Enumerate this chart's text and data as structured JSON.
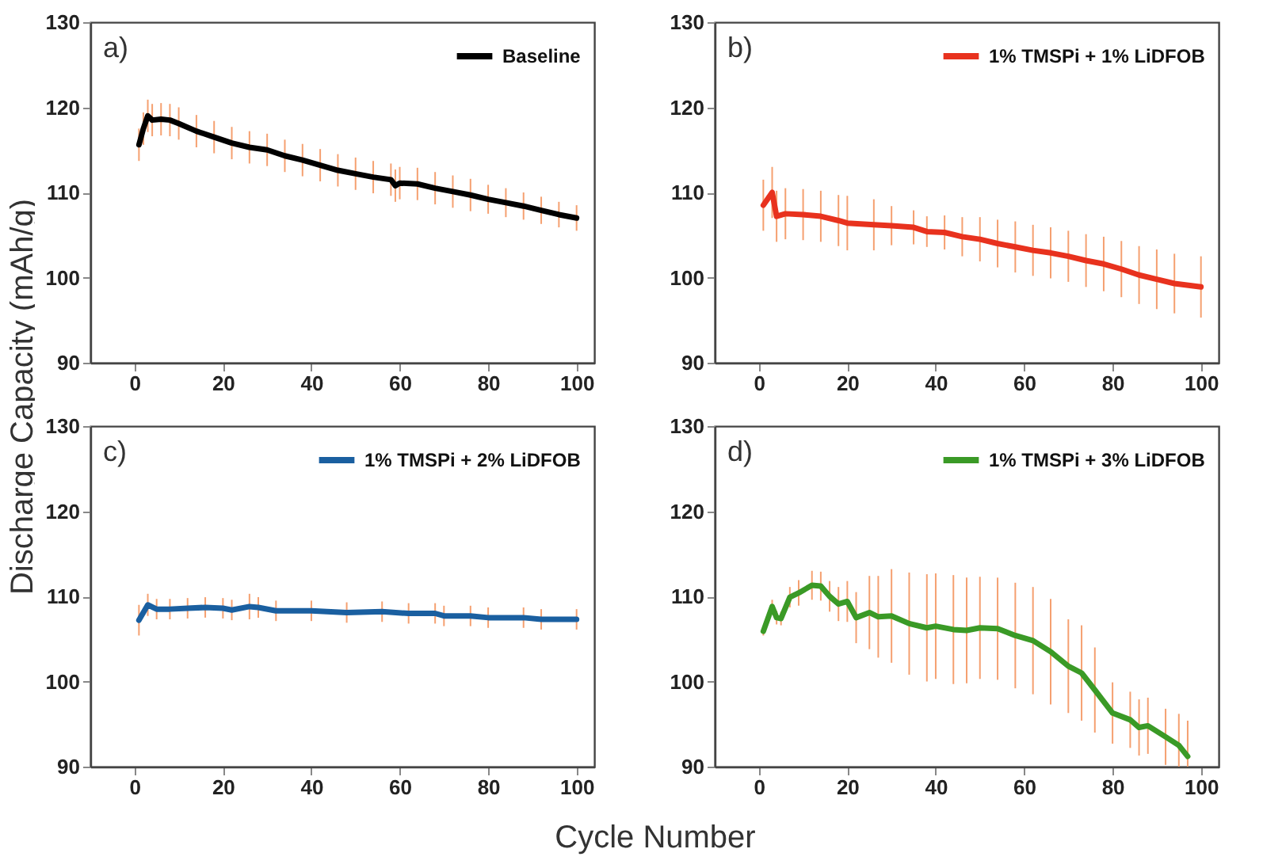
{
  "chart_data": [
    {
      "type": "line",
      "ylabel": "Discharge Capacity (mAh/g)",
      "annotations": [
        "a)"
      ],
      "xlim": [
        -10,
        104
      ],
      "ylim": [
        90,
        130
      ],
      "xticks": [
        0,
        20,
        40,
        60,
        80,
        100
      ],
      "yticks": [
        90,
        100,
        110,
        120,
        130
      ],
      "grid": false,
      "legend": "top right",
      "marker": "none",
      "line_style": "solid",
      "series": [
        {
          "name": "Baseline",
          "color": "#000000",
          "x": [
            1,
            2,
            3,
            4,
            6,
            8,
            10,
            14,
            18,
            22,
            26,
            30,
            34,
            38,
            42,
            46,
            50,
            54,
            58,
            59,
            60,
            64,
            68,
            72,
            76,
            80,
            84,
            88,
            92,
            96,
            100
          ],
          "values": [
            115.6,
            117.5,
            119.0,
            118.5,
            118.6,
            118.5,
            118.1,
            117.2,
            116.5,
            115.8,
            115.3,
            115.0,
            114.3,
            113.8,
            113.2,
            112.6,
            112.2,
            111.8,
            111.5,
            110.8,
            111.1,
            111.0,
            110.5,
            110.1,
            109.7,
            109.2,
            108.8,
            108.4,
            107.9,
            107.4,
            107.0
          ],
          "errors": [
            1.9,
            1.9,
            1.9,
            1.9,
            1.9,
            1.9,
            1.9,
            1.9,
            1.9,
            1.9,
            1.9,
            1.9,
            1.9,
            1.9,
            1.9,
            1.9,
            1.9,
            1.9,
            1.9,
            1.9,
            1.9,
            1.9,
            1.9,
            1.9,
            1.9,
            1.7,
            1.7,
            1.6,
            1.6,
            1.5,
            1.5
          ]
        }
      ]
    },
    {
      "type": "line",
      "annotations": [
        "b)"
      ],
      "xlim": [
        -10,
        104
      ],
      "ylim": [
        90,
        130
      ],
      "xticks": [
        0,
        20,
        40,
        60,
        80,
        100
      ],
      "yticks": [
        90,
        100,
        110,
        120,
        130
      ],
      "grid": false,
      "legend": "top right",
      "marker": "none",
      "line_style": "solid",
      "series": [
        {
          "name": "1% TMSPi + 1% LiDFOB",
          "color": "#e8321e",
          "x": [
            1,
            3,
            4,
            6,
            10,
            14,
            18,
            20,
            26,
            30,
            35,
            38,
            42,
            46,
            50,
            54,
            58,
            62,
            66,
            70,
            74,
            78,
            82,
            86,
            90,
            94,
            100
          ],
          "values": [
            108.5,
            110.0,
            107.2,
            107.5,
            107.4,
            107.2,
            106.7,
            106.4,
            106.2,
            106.1,
            105.9,
            105.4,
            105.3,
            104.8,
            104.5,
            104.0,
            103.6,
            103.2,
            102.9,
            102.5,
            102.0,
            101.6,
            101.0,
            100.3,
            99.8,
            99.3,
            98.9
          ],
          "errors": [
            3.0,
            3.0,
            3.0,
            3.0,
            3.0,
            3.0,
            3.0,
            3.2,
            3.0,
            2.3,
            2.0,
            1.8,
            2.0,
            2.3,
            2.6,
            2.8,
            3.0,
            3.0,
            3.0,
            3.0,
            3.1,
            3.2,
            3.3,
            3.4,
            3.5,
            3.5,
            3.6
          ]
        }
      ]
    },
    {
      "type": "line",
      "xlabel": "Cycle Number",
      "annotations": [
        "c)"
      ],
      "xlim": [
        -10,
        104
      ],
      "ylim": [
        90,
        130
      ],
      "xticks": [
        0,
        20,
        40,
        60,
        80,
        100
      ],
      "yticks": [
        90,
        100,
        110,
        120,
        130
      ],
      "grid": false,
      "legend": "top right",
      "marker": "none",
      "line_style": "solid",
      "series": [
        {
          "name": "1% TMSPi + 2% LiDFOB",
          "color": "#1a5fa0",
          "x": [
            1,
            3,
            5,
            8,
            12,
            16,
            20,
            22,
            26,
            28,
            32,
            40,
            48,
            56,
            62,
            68,
            70,
            76,
            80,
            88,
            92,
            100
          ],
          "values": [
            107.2,
            109.0,
            108.5,
            108.5,
            108.6,
            108.7,
            108.6,
            108.4,
            108.8,
            108.7,
            108.3,
            108.3,
            108.1,
            108.2,
            108.0,
            108.0,
            107.7,
            107.7,
            107.5,
            107.5,
            107.3,
            107.3
          ],
          "errors": [
            1.8,
            1.3,
            1.2,
            1.2,
            1.2,
            1.2,
            1.2,
            1.2,
            1.5,
            1.2,
            1.2,
            1.2,
            1.2,
            1.2,
            1.2,
            1.2,
            1.2,
            1.2,
            1.2,
            1.2,
            1.2,
            1.2
          ]
        }
      ]
    },
    {
      "type": "line",
      "annotations": [
        "d)"
      ],
      "xlim": [
        -10,
        104
      ],
      "ylim": [
        90,
        130
      ],
      "xticks": [
        0,
        20,
        40,
        60,
        80,
        100
      ],
      "yticks": [
        90,
        100,
        110,
        120,
        130
      ],
      "grid": false,
      "legend": "top right",
      "marker": "none",
      "line_style": "solid",
      "series": [
        {
          "name": "1% TMSPi + 3% LiDFOB",
          "color": "#3a9a26",
          "x": [
            1,
            3,
            4,
            5,
            7,
            9,
            12,
            14,
            16,
            18,
            20,
            22,
            25,
            27,
            30,
            34,
            38,
            40,
            44,
            47,
            50,
            54,
            58,
            62,
            66,
            70,
            73,
            76,
            80,
            84,
            86,
            88,
            92,
            95,
            97
          ],
          "values": [
            105.9,
            108.8,
            107.5,
            107.4,
            109.9,
            110.4,
            111.3,
            111.2,
            110.0,
            109.1,
            109.4,
            107.5,
            108.1,
            107.6,
            107.7,
            106.8,
            106.3,
            106.5,
            106.1,
            106.0,
            106.3,
            106.2,
            105.4,
            104.8,
            103.5,
            101.8,
            101.0,
            99.0,
            96.3,
            95.5,
            94.6,
            94.8,
            93.5,
            92.5,
            91.2
          ],
          "errors": [
            0.5,
            0.8,
            0.8,
            0.8,
            1.2,
            1.5,
            1.7,
            1.7,
            1.8,
            2.0,
            2.4,
            3.0,
            4.3,
            4.8,
            5.5,
            6.0,
            6.3,
            6.2,
            6.4,
            6.2,
            6.0,
            6.0,
            6.2,
            6.3,
            6.2,
            5.5,
            5.6,
            5.0,
            3.6,
            3.3,
            3.3,
            3.3,
            3.3,
            [
              90,
              96.2
            ],
            [
              90,
              95.4
            ]
          ]
        }
      ]
    }
  ]
}
